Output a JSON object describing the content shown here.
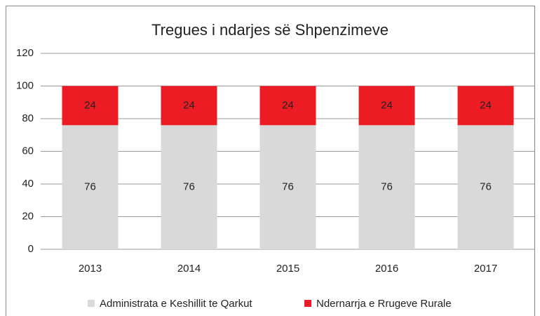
{
  "chart_data": {
    "type": "bar",
    "stacked": true,
    "title": "Tregues i ndarjes së Shpenzimeve",
    "categories": [
      "2013",
      "2014",
      "2015",
      "2016",
      "2017"
    ],
    "series": [
      {
        "name": "Administrata e Keshillit te Qarkut",
        "color": "#d9d9d9",
        "values": [
          76,
          76,
          76,
          76,
          76
        ]
      },
      {
        "name": "Ndernarrja e Rrugeve Rurale",
        "color": "#ed1c24",
        "values": [
          24,
          24,
          24,
          24,
          24
        ]
      }
    ],
    "ylim": [
      0,
      120
    ],
    "yticks": [
      0,
      20,
      40,
      60,
      80,
      100,
      120
    ],
    "grid": true,
    "legend": "bottom"
  }
}
